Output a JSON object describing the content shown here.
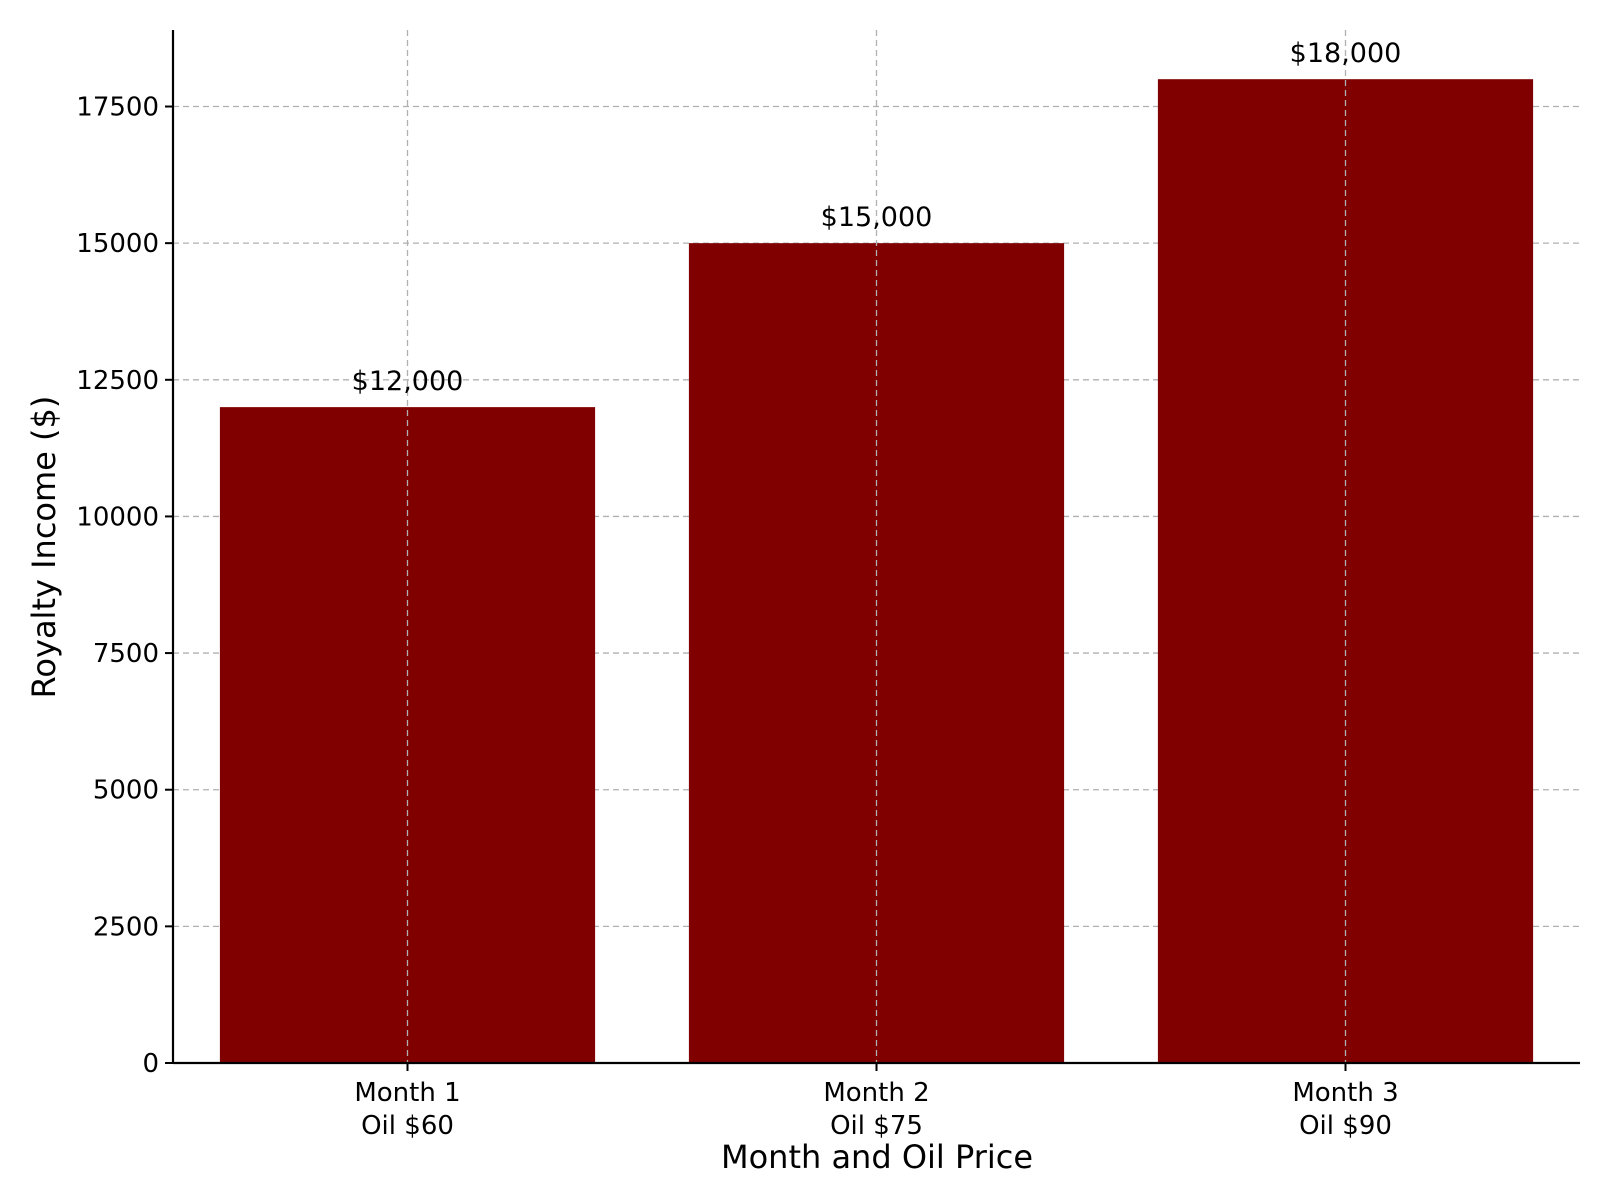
{
  "chart_data": {
    "type": "bar",
    "categories": [
      [
        "Month 1",
        "Oil $60"
      ],
      [
        "Month 2",
        "Oil $75"
      ],
      [
        "Month 3",
        "Oil $90"
      ]
    ],
    "values": [
      12000,
      15000,
      18000
    ],
    "data_labels": [
      "$12,000",
      "$15,000",
      "$18,000"
    ],
    "title": "",
    "xlabel": "Month and Oil Price",
    "ylabel": "Royalty Income ($)",
    "ylim": [
      0,
      18900
    ],
    "yticks": [
      0,
      2500,
      5000,
      7500,
      10000,
      12500,
      15000,
      17500
    ],
    "grid": true,
    "bar_color": "#800000",
    "grid_color": "#b0b0b0"
  }
}
